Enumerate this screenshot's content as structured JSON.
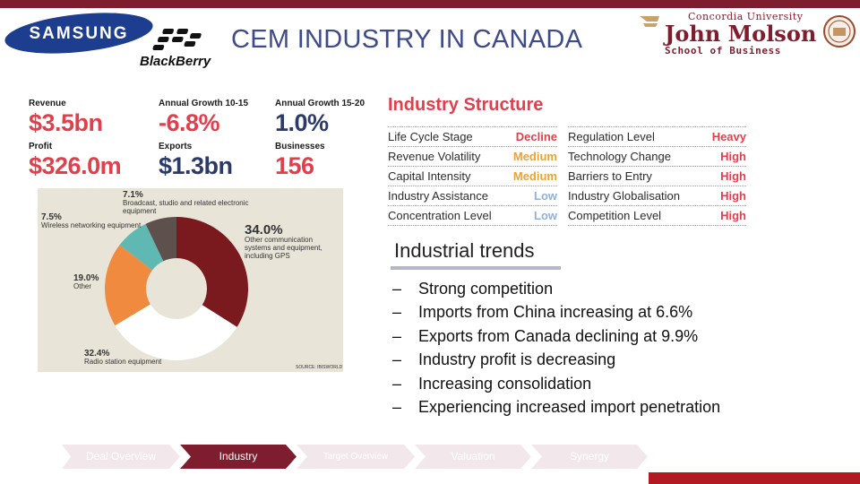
{
  "colors": {
    "accent": "#7e1d2e",
    "title": "#3e4a8a",
    "stat_red": "#e0404c",
    "stat_navy": "#2c3a67",
    "level_high": "#e0404c",
    "level_medium": "#e8a23a",
    "level_low": "#8fb1d9"
  },
  "logos": {
    "samsung": "SAMSUNG",
    "blackberry": "BlackBerry",
    "school_line1": "Concordia University",
    "school_line2": "John Molson",
    "school_line3": "School of Business"
  },
  "title": "CEM INDUSTRY IN CANADA",
  "stats": [
    {
      "label": "Revenue",
      "value": "$3.5bn",
      "color": "red"
    },
    {
      "label": "Annual Growth 10-15",
      "value": "-6.8%",
      "color": "red"
    },
    {
      "label": "Annual Growth 15-20",
      "value": "1.0%",
      "color": "navy"
    },
    {
      "label": "Profit",
      "value": "$326.0m",
      "color": "red"
    },
    {
      "label": "Exports",
      "value": "$1.3bn",
      "color": "navy"
    },
    {
      "label": "Businesses",
      "value": "156",
      "color": "red"
    }
  ],
  "chart_data": {
    "type": "pie",
    "donut": true,
    "slices": [
      {
        "label": "Other communication systems and equipment, including GPS",
        "value": 34.0,
        "color": "#7a1a1e"
      },
      {
        "label": "Radio station equipment",
        "value": 32.4,
        "color": "#ffffff"
      },
      {
        "label": "Other",
        "value": 19.0,
        "color": "#f08a3e"
      },
      {
        "label": "Wireless networking equipment",
        "value": 7.5,
        "color": "#5fb8b2"
      },
      {
        "label": "Broadcast, studio and related electronic equipment",
        "value": 7.1,
        "color": "#5e514d"
      }
    ],
    "pct_labels": [
      "34.0%",
      "32.4%",
      "19.0%",
      "7.5%",
      "7.1%"
    ],
    "source": "SOURCE: IBISWORLD"
  },
  "structure": {
    "title": "Industry Structure",
    "left": [
      {
        "key": "Life Cycle Stage",
        "value": "Decline",
        "level": "high"
      },
      {
        "key": "Revenue Volatility",
        "value": "Medium",
        "level": "medium"
      },
      {
        "key": "Capital Intensity",
        "value": "Medium",
        "level": "medium"
      },
      {
        "key": "Industry Assistance",
        "value": "Low",
        "level": "low"
      },
      {
        "key": "Concentration Level",
        "value": "Low",
        "level": "low"
      }
    ],
    "right": [
      {
        "key": "Regulation Level",
        "value": "Heavy",
        "level": "high"
      },
      {
        "key": "Technology Change",
        "value": "High",
        "level": "high"
      },
      {
        "key": "Barriers to Entry",
        "value": "High",
        "level": "high"
      },
      {
        "key": "Industry Globalisation",
        "value": "High",
        "level": "high"
      },
      {
        "key": "Competition Level",
        "value": "High",
        "level": "high"
      }
    ]
  },
  "trends": {
    "title": "Industrial trends",
    "bullet": "–",
    "items": [
      "Strong competition",
      "Imports from China increasing at 6.6%",
      "Exports from Canada declining at 9.9%",
      "Industry profit is decreasing",
      "Increasing consolidation",
      "Experiencing increased import penetration"
    ]
  },
  "nav": {
    "items": [
      {
        "label": "Deal Overview",
        "active": false
      },
      {
        "label": "Industry",
        "active": true
      },
      {
        "label": "Target Overview",
        "active": false
      },
      {
        "label": "Valuation",
        "active": false
      },
      {
        "label": "Synergy",
        "active": false
      }
    ]
  }
}
